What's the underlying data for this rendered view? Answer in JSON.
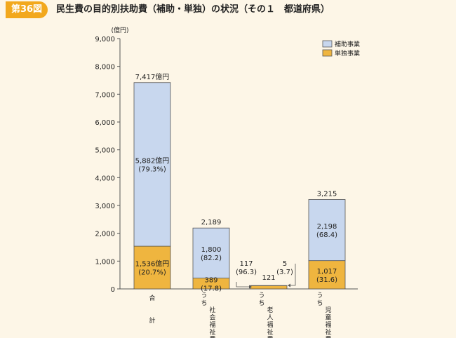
{
  "header": {
    "figure_label": "第36図",
    "title": "民生費の目的別扶助費（補助・単独）の状況（その１　都道府県）"
  },
  "colors": {
    "background": "#fdf6e7",
    "label_bg": "#f2a81d",
    "subsidized": "#c8d7ee",
    "independent": "#efb53f",
    "bar_stroke": "#555555"
  },
  "chart_data": {
    "type": "bar",
    "stacked": true,
    "unit_label": "(億円)",
    "ylim": [
      0,
      9000
    ],
    "yticks": [
      "0",
      "1,000",
      "2,000",
      "3,000",
      "4,000",
      "5,000",
      "6,000",
      "7,000",
      "8,000",
      "9,000"
    ],
    "grid": false,
    "legend_position": "top-right",
    "categories": [
      {
        "lines": [
          "合",
          "",
          "計"
        ]
      },
      {
        "lines": [
          "う",
          "ち",
          "社",
          "会",
          "福",
          "祉",
          "費"
        ]
      },
      {
        "lines": [
          "う",
          "ち",
          "老",
          "人",
          "福",
          "祉",
          "費"
        ]
      },
      {
        "lines": [
          "う",
          "ち",
          "児",
          "童",
          "福",
          "祉",
          "費"
        ]
      }
    ],
    "series": [
      {
        "name": "単独事業",
        "values": [
          1536,
          389,
          117,
          1017
        ]
      },
      {
        "name": "補助事業",
        "values": [
          5882,
          1800,
          5,
          2198
        ]
      }
    ],
    "legend": [
      "補助事業",
      "単独事業"
    ],
    "totals": [
      7417,
      2189,
      121,
      3215
    ],
    "total_labels": [
      "7,417億円",
      "2,189",
      "121",
      "3,215"
    ],
    "segment_labels": [
      {
        "independent": [
          "1,536億円",
          "(20.7%)"
        ],
        "subsidized": [
          "5,882億円",
          "(79.3%)"
        ]
      },
      {
        "independent": [
          "389",
          "(17.8)"
        ],
        "subsidized": [
          "1,800",
          "(82.2)"
        ]
      },
      {
        "independent": [
          "117",
          "(96.3)"
        ],
        "subsidized": [
          "5",
          "(3.7)"
        ]
      },
      {
        "independent": [
          "1,017",
          "(31.6)"
        ],
        "subsidized": [
          "2,198",
          "(68.4)"
        ]
      }
    ]
  }
}
